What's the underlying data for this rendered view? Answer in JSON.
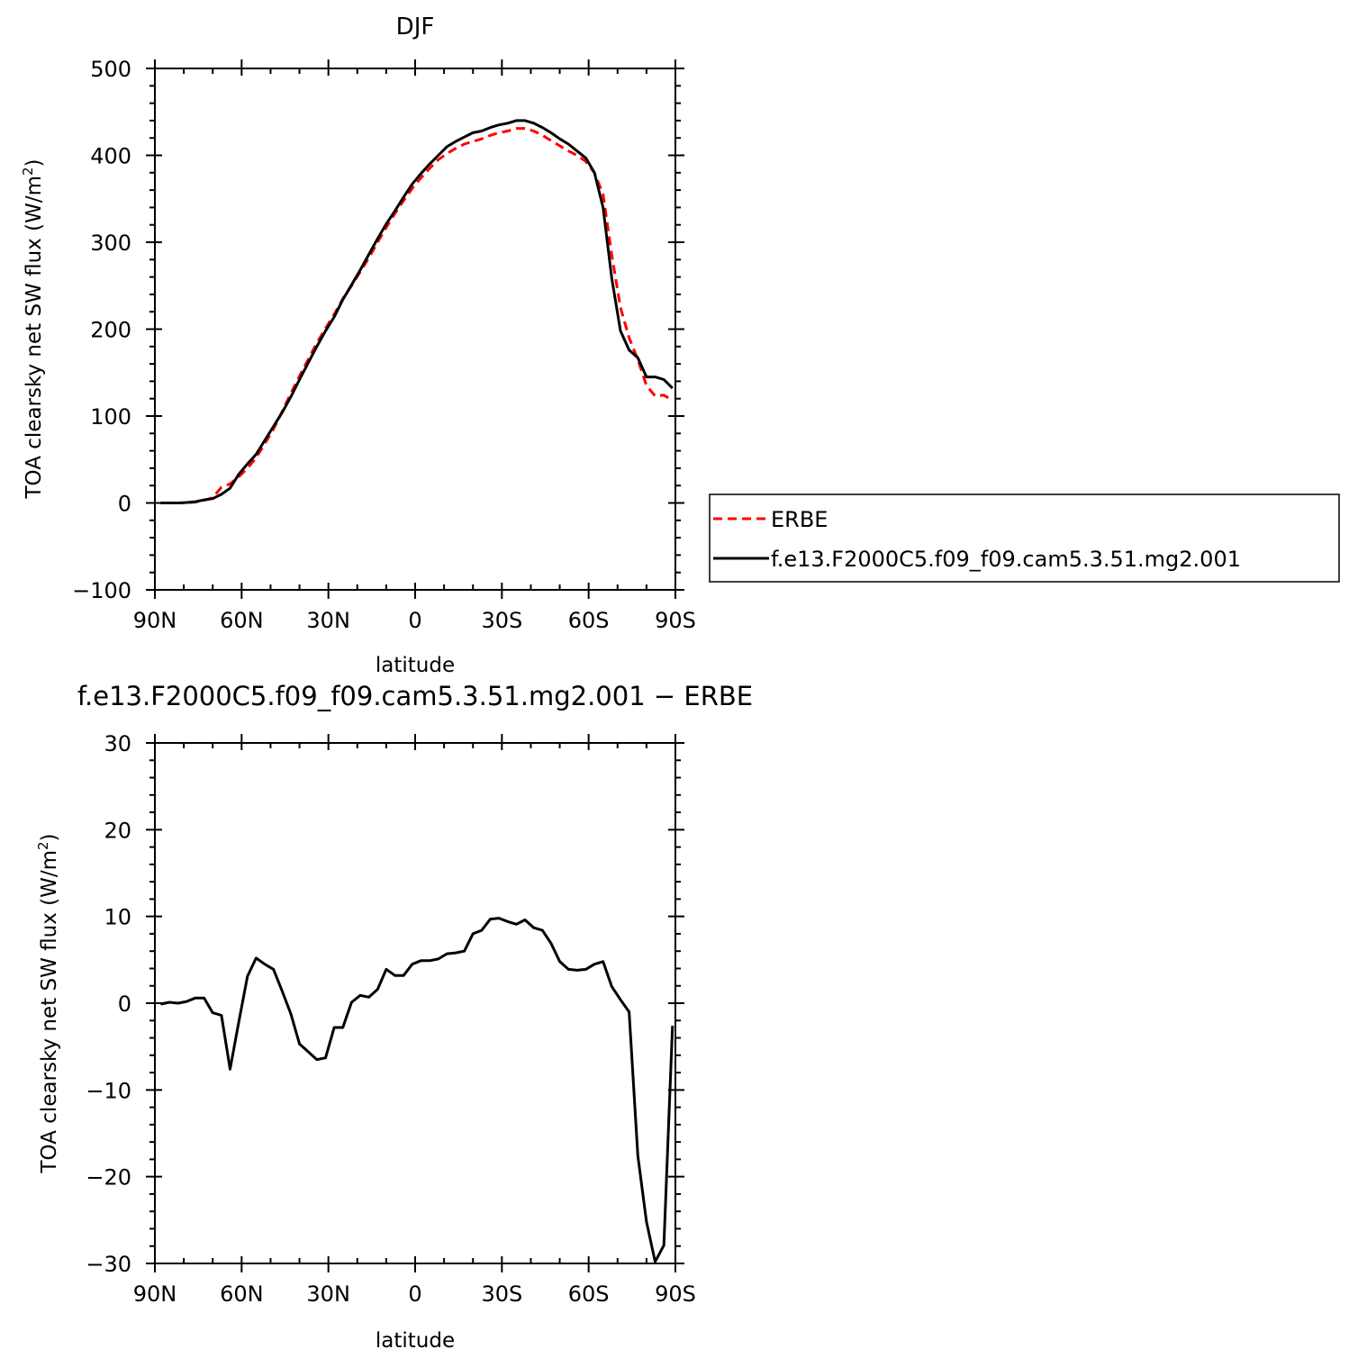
{
  "chart_data": [
    {
      "type": "line",
      "title": "DJF",
      "xlabel": "latitude",
      "ylabel": "TOA clearsky net SW flux (W/m²)",
      "ylabel_main": "TOA clearsky net SW flux (W/m",
      "ylabel_sup": "2",
      "ylabel_end": ")",
      "xlim": [
        -90,
        90
      ],
      "ylim": [
        -100,
        500
      ],
      "xticks": [
        -90,
        -60,
        -30,
        0,
        30,
        60,
        90
      ],
      "xtick_labels": [
        "90N",
        "60N",
        "30N",
        "0",
        "30S",
        "60S",
        "90S"
      ],
      "yticks": [
        -100,
        0,
        100,
        200,
        300,
        400,
        500
      ],
      "ytick_labels": [
        "−100",
        "0",
        "100",
        "200",
        "300",
        "400",
        "500"
      ],
      "grid": false,
      "legend_position": "right",
      "series": [
        {
          "name": "ERBE",
          "color": "#ff0000",
          "style": "dashed",
          "x": [
            -88,
            -85,
            -82,
            -79,
            -76,
            -73,
            -70,
            -67,
            -64,
            -61,
            -58,
            -55,
            -52,
            -49,
            -46,
            -43,
            -40,
            -37,
            -34,
            -31,
            -28,
            -25,
            -22,
            -19,
            -16,
            -13,
            -10,
            -7,
            -4,
            -1,
            2,
            5,
            8,
            11,
            14,
            17,
            20,
            23,
            26,
            29,
            32,
            35,
            38,
            41,
            44,
            47,
            50,
            53,
            56,
            59,
            62,
            65,
            68,
            71,
            74,
            77,
            80,
            83,
            86,
            89
          ],
          "y": [
            0,
            0,
            0,
            0,
            1,
            3,
            6,
            18,
            22,
            30,
            40,
            52,
            68,
            85,
            105,
            126,
            146,
            165,
            184,
            201,
            217,
            235,
            250,
            266,
            282,
            300,
            317,
            333,
            348,
            362,
            374,
            385,
            395,
            402,
            408,
            413,
            416,
            419,
            423,
            426,
            428,
            431,
            431,
            428,
            423,
            417,
            411,
            405,
            400,
            393,
            380,
            355,
            285,
            225,
            190,
            165,
            135,
            123,
            124,
            118
          ]
        },
        {
          "name": "f.e13.F2000C5.f09_f09.cam5.3.51.mg2.001",
          "color": "#000000",
          "style": "solid",
          "x": [
            -88,
            -85,
            -82,
            -79,
            -76,
            -73,
            -70,
            -67,
            -64,
            -61,
            -58,
            -55,
            -52,
            -49,
            -46,
            -43,
            -40,
            -37,
            -34,
            -31,
            -28,
            -25,
            -22,
            -19,
            -16,
            -13,
            -10,
            -7,
            -4,
            -1,
            2,
            5,
            8,
            11,
            14,
            17,
            20,
            23,
            26,
            29,
            32,
            35,
            38,
            41,
            44,
            47,
            50,
            53,
            56,
            59,
            62,
            65,
            68,
            71,
            74,
            77,
            80,
            83,
            86,
            89
          ],
          "y": [
            0,
            0,
            0,
            0.5,
            1.5,
            3.5,
            5,
            10,
            17,
            33,
            45,
            56,
            72,
            88,
            104,
            122,
            142,
            161,
            180,
            198,
            214,
            234,
            251,
            268,
            286,
            304,
            321,
            336,
            352,
            367,
            379,
            390,
            400,
            410,
            416,
            421,
            426,
            428,
            432,
            435,
            437,
            440,
            440,
            437,
            432,
            426,
            419,
            413,
            405,
            397,
            380,
            340,
            258,
            198,
            176,
            167,
            145,
            145,
            142,
            132
          ]
        }
      ]
    },
    {
      "type": "line",
      "title": "f.e13.F2000C5.f09_f09.cam5.3.51.mg2.001  − ERBE",
      "xlabel": "latitude",
      "ylabel": "TOA clearsky net SW flux (W/m²)",
      "ylabel_main": "TOA clearsky net SW flux (W/m",
      "ylabel_sup": "2",
      "ylabel_end": ")",
      "xlim": [
        -90,
        90
      ],
      "ylim": [
        -30,
        30
      ],
      "xticks": [
        -90,
        -60,
        -30,
        0,
        30,
        60,
        90
      ],
      "xtick_labels": [
        "90N",
        "60N",
        "30N",
        "0",
        "30S",
        "60S",
        "90S"
      ],
      "yticks": [
        -30,
        -20,
        -10,
        0,
        10,
        20,
        30
      ],
      "ytick_labels": [
        "−30",
        "−20",
        "−10",
        "0",
        "10",
        "20",
        "30"
      ],
      "grid": false,
      "series": [
        {
          "color": "#000000",
          "style": "solid",
          "x": [
            -88,
            -85,
            -82,
            -79,
            -76,
            -73,
            -70,
            -67,
            -64,
            -61,
            -58,
            -55,
            -52,
            -49,
            -46,
            -43,
            -40,
            -37,
            -34,
            -31,
            -28,
            -25,
            -22,
            -19,
            -16,
            -13,
            -10,
            -7,
            -4,
            -1,
            2,
            5,
            8,
            11,
            14,
            17,
            20,
            23,
            26,
            29,
            32,
            35,
            38,
            41,
            44,
            47,
            50,
            53,
            56,
            59,
            62,
            65,
            68,
            71,
            74,
            77,
            80,
            83,
            86,
            89
          ],
          "y": [
            -0.1,
            0.1,
            0.0,
            0.2,
            0.6,
            0.6,
            -1.1,
            -1.4,
            -7.6,
            -2.2,
            3.1,
            5.2,
            4.5,
            3.9,
            1.4,
            -1.2,
            -4.7,
            -5.6,
            -6.5,
            -6.3,
            -2.8,
            -2.8,
            0.1,
            0.9,
            0.7,
            1.6,
            3.9,
            3.2,
            3.2,
            4.5,
            4.9,
            4.9,
            5.1,
            5.7,
            5.8,
            6.0,
            8.0,
            8.4,
            9.7,
            9.8,
            9.4,
            9.1,
            9.6,
            8.7,
            8.4,
            6.9,
            4.8,
            3.9,
            3.8,
            3.9,
            4.5,
            4.8,
            1.9,
            0.4,
            -1.0,
            -17.6,
            -25.2,
            -29.8,
            -27.9,
            -2.6
          ]
        }
      ]
    }
  ]
}
